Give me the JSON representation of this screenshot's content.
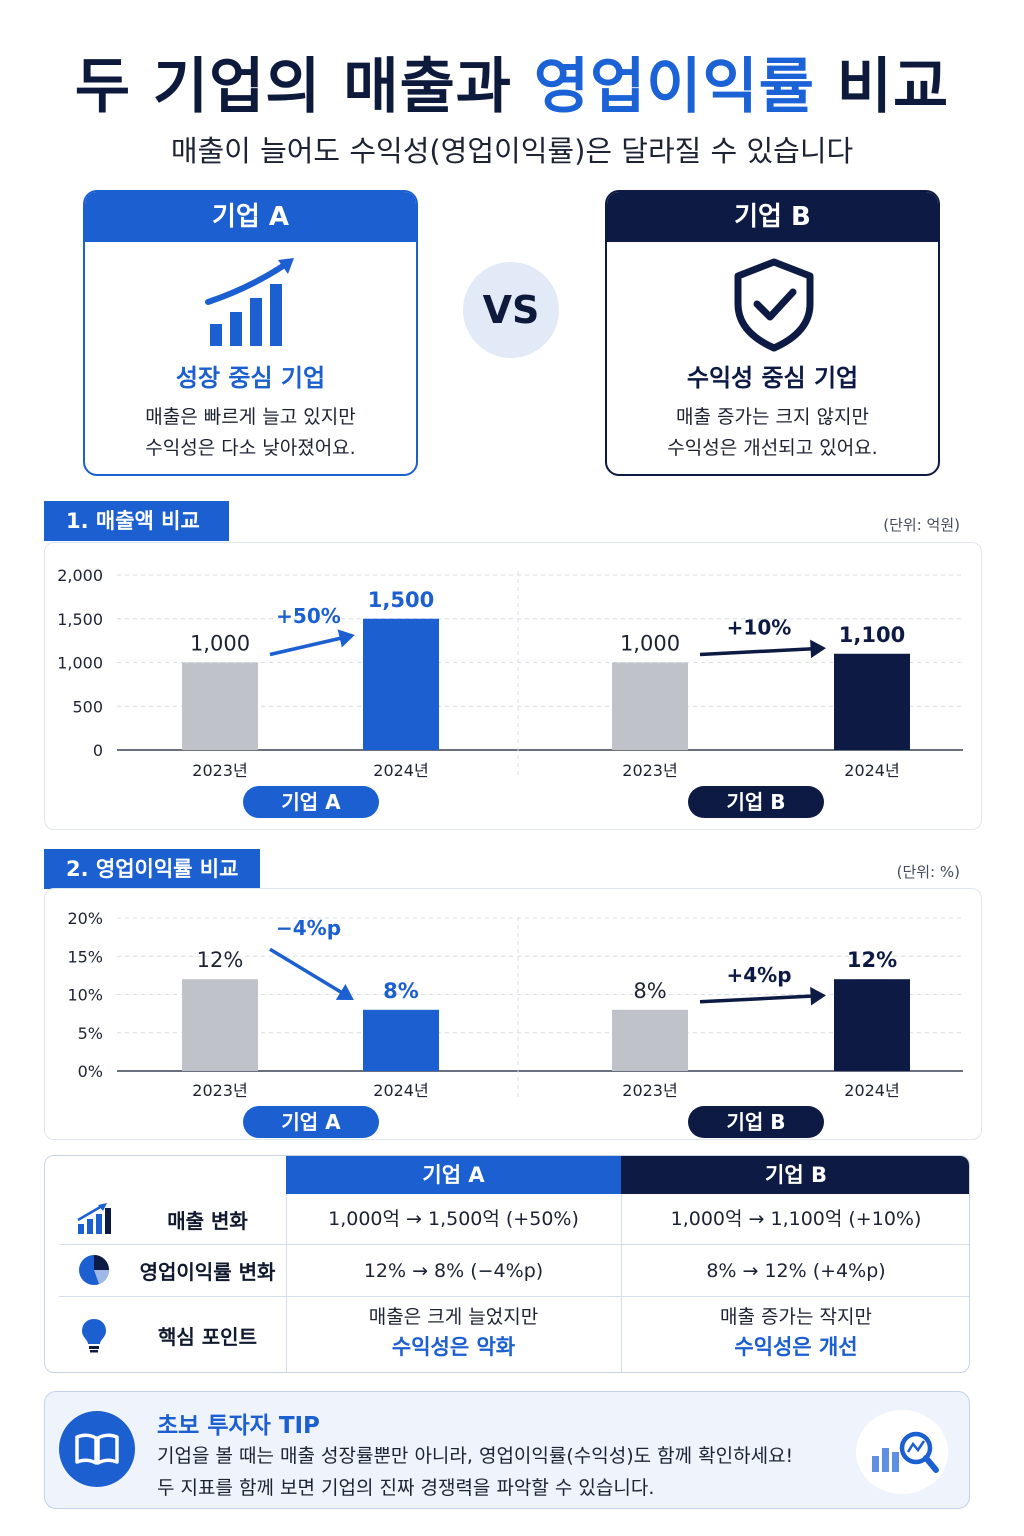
{
  "header": {
    "title_prefix": "두 기업의 매출과 ",
    "title_accent": "영업이익률",
    "title_suffix": " 비교",
    "subtitle": "매출이 늘어도 수익성(영업이익률)은 달라질 수 있습니다"
  },
  "cards": {
    "a": {
      "head": "기업 A",
      "sub": "성장 중심 기업",
      "desc1": "매출은 빠르게 늘고 있지만",
      "desc2": "수익성은 다소 낮아졌어요.",
      "icon": "growth-chart-icon"
    },
    "b": {
      "head": "기업 B",
      "sub": "수익성 중심 기업",
      "desc1": "매출 증가는 크지 않지만",
      "desc2": "수익성은 개선되고 있어요.",
      "icon": "shield-check-icon"
    },
    "vs": "VS"
  },
  "sections": {
    "revenue": {
      "tag": "1. 매출액 비교",
      "unit": "(단위: 억원)"
    },
    "margin": {
      "tag": "2. 영업이익률 비교",
      "unit": "(단위: %)"
    }
  },
  "colors": {
    "blue": "#1b5fd1",
    "navy": "#0d1b44",
    "gray": "#bfc2c9"
  },
  "chart_data": [
    {
      "type": "bar",
      "ylim": [
        0,
        2000
      ],
      "yticks": [
        "2,000",
        "1,500",
        "1,000",
        "500",
        "0"
      ],
      "ytick_values": [
        2000,
        1500,
        1000,
        500,
        0
      ],
      "groups": [
        {
          "name": "기업 A",
          "categories": [
            "2023년",
            "2024년"
          ],
          "values": [
            1000,
            1500
          ],
          "labels": [
            "1,000",
            "1,500"
          ],
          "change": "+50%"
        },
        {
          "name": "기업 B",
          "categories": [
            "2023년",
            "2024년"
          ],
          "values": [
            1000,
            1100
          ],
          "labels": [
            "1,000",
            "1,100"
          ],
          "change": "+10%"
        }
      ]
    },
    {
      "type": "bar",
      "ylim": [
        0,
        20
      ],
      "yticks": [
        "20%",
        "15%",
        "10%",
        "5%",
        "0%"
      ],
      "ytick_values": [
        20,
        15,
        10,
        5,
        0
      ],
      "groups": [
        {
          "name": "기업 A",
          "categories": [
            "2023년",
            "2024년"
          ],
          "values": [
            12,
            8
          ],
          "labels": [
            "12%",
            "8%"
          ],
          "change": "−4%p"
        },
        {
          "name": "기업 B",
          "categories": [
            "2023년",
            "2024년"
          ],
          "values": [
            8,
            12
          ],
          "labels": [
            "8%",
            "12%"
          ],
          "change": "+4%p"
        }
      ]
    }
  ],
  "table": {
    "head_a": "기업 A",
    "head_b": "기업 B",
    "rows": [
      {
        "label": "매출 변화",
        "icon": "bar-chart-icon",
        "a": "1,000억 → 1,500억 (+50%)",
        "b": "1,000억 → 1,100억 (+10%)"
      },
      {
        "label": "영업이익률 변화",
        "icon": "pie-chart-icon",
        "a": "12% → 8% (−4%p)",
        "b": "8% → 12% (+4%p)"
      },
      {
        "label": "핵심 포인트",
        "icon": "lightbulb-icon",
        "a1": "매출은 크게 늘었지만",
        "a2": "수익성은 악화",
        "b1": "매출 증가는 작지만",
        "b2": "수익성은 개선"
      }
    ]
  },
  "tip": {
    "title": "초보 투자자 TIP",
    "line1": "기업을 볼 때는 매출 성장률뿐만 아니라, 영업이익률(수익성)도 함께 확인하세요!",
    "line2": "두 지표를 함께 보면 기업의 진짜 경쟁력을 파악할 수 있습니다."
  }
}
